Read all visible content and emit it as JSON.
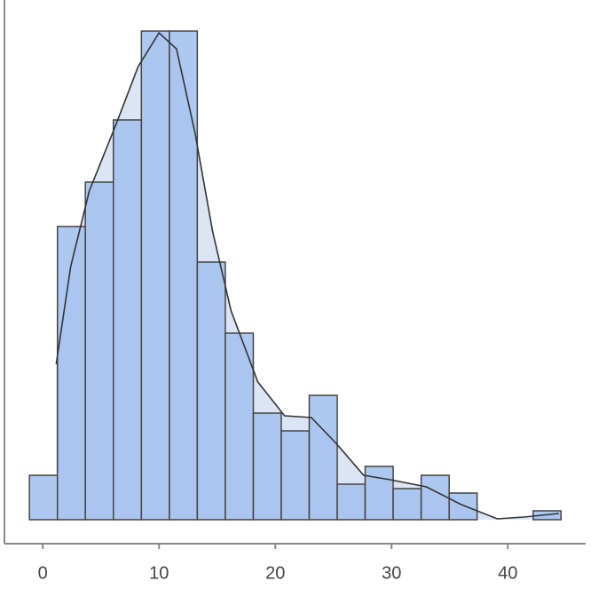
{
  "chart_data": {
    "type": "histogram",
    "bins": [
      -1.15,
      1.26,
      3.66,
      6.07,
      8.48,
      10.89,
      13.29,
      15.7,
      18.11,
      20.51,
      22.92,
      25.33,
      27.73,
      30.14,
      32.55,
      34.96,
      37.36,
      39.77,
      42.18,
      44.58
    ],
    "counts": [
      5,
      33,
      38,
      45,
      55,
      55,
      29,
      21,
      12,
      10,
      14,
      4,
      6,
      3.5,
      5,
      3,
      0,
      0,
      1
    ],
    "color": "#a4c2f0",
    "density": {
      "x": [
        1.15,
        2.4,
        4.0,
        6.3,
        8.2,
        10,
        11.5,
        13.1,
        14.6,
        16.2,
        18.5,
        20.8,
        23.1,
        25.3,
        27.6,
        29.9,
        33,
        36,
        39.1,
        41.4,
        44.4
      ],
      "y": [
        17.5,
        28.5,
        37,
        44.5,
        51,
        54.8,
        53,
        43.5,
        32.5,
        23.5,
        15.5,
        11.7,
        11.5,
        8.5,
        5,
        4.5,
        3.7,
        1.7,
        0.1,
        0.3,
        0.7
      ],
      "color": "#333333",
      "fill": "#dbe5f6"
    },
    "xlim": [
      -3.3,
      46.7
    ],
    "ylim": [
      -2.7,
      58.5
    ],
    "xticks": [
      0,
      10,
      20,
      30,
      40
    ]
  }
}
